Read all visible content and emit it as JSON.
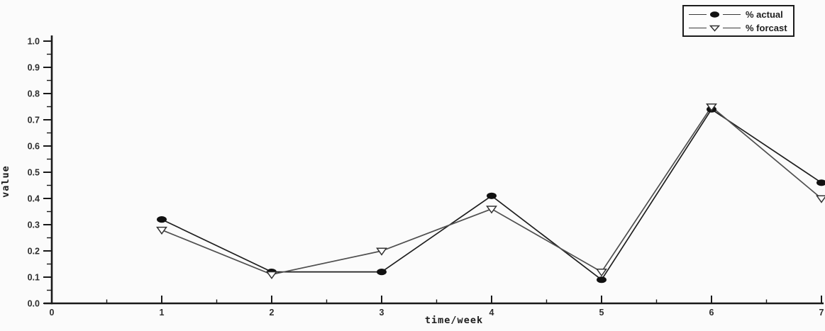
{
  "chart_data": {
    "type": "line",
    "title": "",
    "xlabel": "time/week",
    "ylabel": "value",
    "x": [
      1,
      2,
      3,
      4,
      5,
      6,
      7
    ],
    "series": [
      {
        "name": "% actual",
        "marker": "filled-ellipse",
        "color": "#1f1f1f",
        "marker_color": "#111111",
        "values": [
          0.32,
          0.12,
          0.12,
          0.41,
          0.09,
          0.74,
          0.46
        ]
      },
      {
        "name": "% forcast",
        "marker": "open-triangle-down",
        "color": "#4f4f4f",
        "marker_color": "#ffffff",
        "marker_stroke": "#333333",
        "values": [
          0.28,
          0.11,
          0.2,
          0.36,
          0.12,
          0.75,
          0.4
        ]
      }
    ],
    "xlim": [
      0,
      7
    ],
    "ylim": [
      0.0,
      1.0
    ],
    "x_major_tick_step": 1,
    "x_minor_tick_step": 0.5,
    "y_major_tick_step": 0.1,
    "y_minor_tick_step": 0.05,
    "grid": false,
    "legend_position": "top-right",
    "axis_color": "#1a1a1a",
    "background": "#fbfbfb"
  }
}
